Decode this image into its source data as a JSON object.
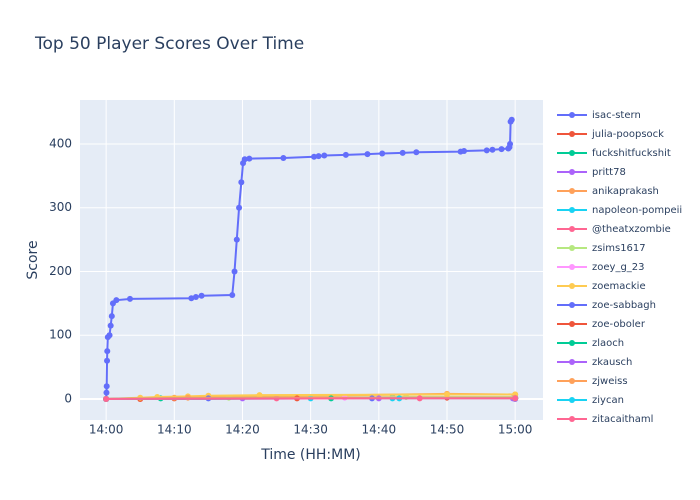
{
  "chart_data": {
    "type": "line",
    "title": "Top 50 Player Scores Over Time",
    "x_label": "Time (HH:MM)",
    "y_label": "Score",
    "xlim": [
      "13:56:10",
      "15:04:05"
    ],
    "ylim": [
      -33,
      469
    ],
    "xticks": [
      "14:00",
      "14:10",
      "14:20",
      "14:30",
      "14:40",
      "14:50",
      "15:00"
    ],
    "yticks": [
      0,
      100,
      200,
      300,
      400
    ],
    "grid": true,
    "series": [
      {
        "name": "isac-stern",
        "color": "#636efa",
        "x": [
          "14:00:00",
          "14:00:03",
          "14:00:05",
          "14:00:08",
          "14:00:10",
          "14:00:15",
          "14:00:30",
          "14:00:40",
          "14:00:50",
          "14:01:00",
          "14:01:30",
          "14:03:30",
          "14:12:30",
          "14:13:10",
          "14:14:00",
          "14:18:30",
          "14:18:50",
          "14:19:10",
          "14:19:30",
          "14:19:50",
          "14:20:05",
          "14:20:20",
          "14:21:00",
          "14:26:00",
          "14:30:30",
          "14:31:10",
          "14:32:00",
          "14:35:10",
          "14:38:20",
          "14:40:30",
          "14:43:30",
          "14:45:30",
          "14:52:00",
          "14:52:30",
          "14:55:50",
          "14:56:40",
          "14:58:00",
          "14:59:00",
          "14:59:10",
          "14:59:15",
          "14:59:20",
          "14:59:30"
        ],
        "values": [
          0,
          10,
          20,
          60,
          75,
          97,
          100,
          115,
          130,
          150,
          155,
          157,
          158,
          160,
          162,
          163,
          200,
          250,
          300,
          340,
          370,
          376,
          377,
          378,
          380,
          381,
          382,
          383,
          384,
          385,
          386,
          387,
          388,
          389,
          390,
          391,
          392,
          393,
          395,
          400,
          435,
          438
        ]
      },
      {
        "name": "julia-poopsock",
        "color": "#EF553B",
        "x": [
          "14:00:00",
          "14:05:00",
          "14:10:00",
          "14:50:00",
          "15:00:00"
        ],
        "values": [
          0,
          0,
          1,
          2,
          1
        ]
      },
      {
        "name": "fuckshitfuckshit",
        "color": "#00cc96",
        "x": [
          "14:00:00",
          "14:08:00",
          "14:42:00",
          "15:00:00"
        ],
        "values": [
          0,
          1,
          2,
          1
        ]
      },
      {
        "name": "pritt78",
        "color": "#ab63fa",
        "x": [
          "14:00:00",
          "14:20:00",
          "14:59:40",
          "15:00:00"
        ],
        "values": [
          0,
          1,
          1,
          0
        ]
      },
      {
        "name": "anikaprakash",
        "color": "#FFA15A",
        "x": [
          "14:00:00",
          "14:10:00",
          "14:50:00",
          "15:00:00"
        ],
        "values": [
          0,
          2,
          8,
          7
        ]
      },
      {
        "name": "napoleon-pompeii",
        "color": "#19d3f3",
        "x": [
          "14:00:00",
          "14:30:00",
          "14:42:00",
          "15:00:00"
        ],
        "values": [
          0,
          1,
          1,
          2
        ]
      },
      {
        "name": "@theatxzombie",
        "color": "#FF6692",
        "x": [
          "14:00:00",
          "14:25:00",
          "15:00:00"
        ],
        "values": [
          0,
          1,
          1
        ]
      },
      {
        "name": "zsims1617",
        "color": "#B6E880",
        "x": [
          "14:00:00",
          "14:18:00",
          "14:44:00",
          "15:00:00"
        ],
        "values": [
          0,
          2,
          3,
          3
        ]
      },
      {
        "name": "zoey_g_23",
        "color": "#FF97FF",
        "x": [
          "14:00:00",
          "14:35:00",
          "15:00:00"
        ],
        "values": [
          0,
          2,
          2
        ]
      },
      {
        "name": "zoemackie",
        "color": "#FECB52",
        "x": [
          "14:00:00",
          "14:05:00",
          "14:07:30",
          "14:12:00",
          "14:15:00",
          "14:22:30",
          "14:50:00",
          "15:00:00"
        ],
        "values": [
          0,
          2,
          3,
          4,
          5,
          6,
          7,
          7
        ]
      },
      {
        "name": "zoe-sabbagh",
        "color": "#636efa",
        "x": [
          "14:00:00",
          "14:15:00",
          "14:39:00",
          "15:00:00"
        ],
        "values": [
          0,
          1,
          1,
          1
        ]
      },
      {
        "name": "zoe-oboler",
        "color": "#EF553B",
        "x": [
          "14:00:00",
          "14:28:00",
          "15:00:00"
        ],
        "values": [
          0,
          1,
          1
        ]
      },
      {
        "name": "zlaoch",
        "color": "#00cc96",
        "x": [
          "14:00:00",
          "14:33:00",
          "15:00:00"
        ],
        "values": [
          0,
          1,
          1
        ]
      },
      {
        "name": "zkausch",
        "color": "#ab63fa",
        "x": [
          "14:00:00",
          "14:40:00",
          "15:00:00"
        ],
        "values": [
          0,
          1,
          1
        ]
      },
      {
        "name": "zjweiss",
        "color": "#FFA15A",
        "x": [
          "14:00:00",
          "14:12:00",
          "15:00:00"
        ],
        "values": [
          0,
          2,
          2
        ]
      },
      {
        "name": "ziycan",
        "color": "#19d3f3",
        "x": [
          "14:00:00",
          "14:43:00",
          "15:00:00"
        ],
        "values": [
          0,
          1,
          1
        ]
      },
      {
        "name": "zitacaithaml",
        "color": "#FF6692",
        "x": [
          "14:00:00",
          "14:46:00",
          "15:00:00"
        ],
        "values": [
          0,
          1,
          1
        ]
      }
    ]
  }
}
